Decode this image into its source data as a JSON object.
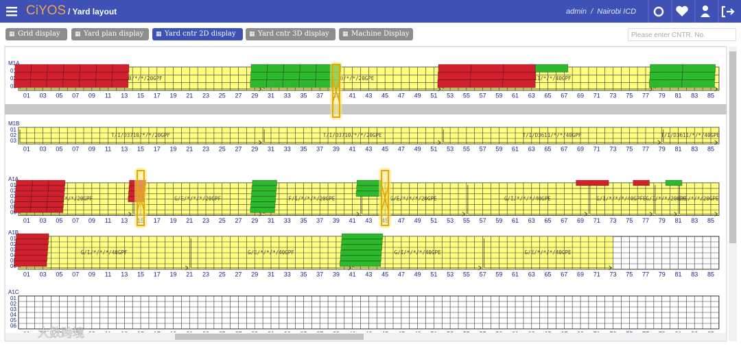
{
  "navbar": {
    "logo": "CiYOS",
    "page": "/ Yard layout",
    "user": "admin",
    "separator": "/",
    "site": "Nairobi ICD"
  },
  "tabs": [
    {
      "label": "Grid display"
    },
    {
      "label": "Yard plan display"
    },
    {
      "label": "Yard cntr 2D display"
    },
    {
      "label": "Yard cntr 3D display"
    },
    {
      "label": "Machine Display"
    }
  ],
  "search": {
    "placeholder": "Please enter CNTR. No."
  },
  "bays": [
    "01",
    "03",
    "05",
    "07",
    "09",
    "11",
    "13",
    "15",
    "17",
    "19",
    "21",
    "23",
    "25",
    "27",
    "29",
    "31",
    "33",
    "35",
    "37",
    "39",
    "41",
    "43",
    "45",
    "47",
    "49",
    "51",
    "53",
    "55",
    "57",
    "59",
    "61",
    "63",
    "65",
    "67",
    "69",
    "71",
    "73",
    "75",
    "77",
    "79",
    "81",
    "83",
    "85"
  ],
  "blocks": [
    {
      "name": "M1A",
      "rows": [
        "01",
        "02",
        "03"
      ],
      "segments": [
        "D710/*/*/20GPF",
        "D710/*/*/20GPE",
        "D3611/*/*/40GPF",
        "E"
      ]
    },
    {
      "name": "M1B",
      "rows": [
        "01",
        "02",
        "03"
      ],
      "segments": [
        "T/I/D3710/*/*/20GPF",
        "T/I/D3710/*/*/20GPE",
        "T/I/D3611/*/*/40GPF",
        "T/I/D3611/*/*/40GPE"
      ]
    },
    {
      "name": "A1A",
      "rows": [
        "01",
        "02",
        "03",
        "04",
        "05",
        "06"
      ],
      "segments": [
        "*/*/*/20GPF",
        "G/E/*/*/*/20GPF",
        "F/I/*/*/*/20GPE",
        "G/E/*/*/*/20GPE",
        "G/I/*/*/*/40GPE",
        "G/I/*/*/*/40GPFE",
        "G/I/*/*/20GPE",
        "G/E/*/*/20GPE"
      ]
    },
    {
      "name": "A1B",
      "rows": [
        "01",
        "02",
        "03",
        "04",
        "05",
        "06"
      ],
      "segments": [
        "G/I/*/*/*/40GPF",
        "G/E/*/*/*/40GPF",
        "G/I/*/*/*/40GPE",
        "G/E/*/*/*/40GPE"
      ]
    },
    {
      "name": "A1C",
      "rows": [
        "01",
        "02",
        "03",
        "04",
        "05",
        "06"
      ],
      "segments": []
    }
  ],
  "watermark": "大数跨境"
}
